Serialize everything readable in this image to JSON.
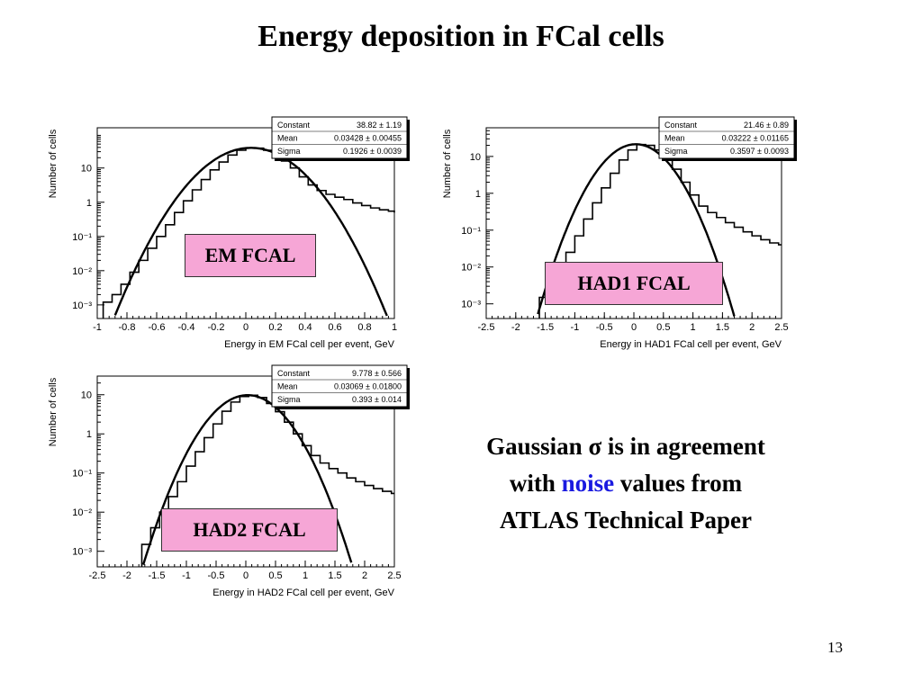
{
  "title": "Energy deposition in FCal cells",
  "note": {
    "line1a": "Gaussian ",
    "sigma": "σ",
    "line1b": " is in agreement",
    "line2a": "with ",
    "highlight": "noise",
    "line2b": " values from",
    "line3": "ATLAS Technical Paper"
  },
  "page_number": "13",
  "colors": {
    "label_bg": "#f6a6d6",
    "highlight": "#1a1ae0"
  },
  "chart_data": [
    {
      "type": "line",
      "label": "EM FCAL",
      "xlabel": "Energy in EM FCal cell per event, GeV",
      "ylabel": "Number of cells",
      "y_scale": "log",
      "xlim": [
        -1,
        1
      ],
      "ylim": [
        0.0004,
        150
      ],
      "xticks": [
        -1,
        -0.8,
        -0.6,
        -0.4,
        -0.2,
        0,
        0.2,
        0.4,
        0.6,
        0.8,
        1
      ],
      "xtick_labels": [
        "-1",
        "-0.8",
        "-0.6",
        "-0.4",
        "-0.2",
        "0",
        "0.2",
        "0.4",
        "0.6",
        "0.8",
        "1"
      ],
      "yticks": [
        0.001,
        0.01,
        0.1,
        1,
        10
      ],
      "ytick_labels": [
        "10⁻³",
        "10⁻²",
        "10⁻¹",
        "1",
        "10"
      ],
      "fit": {
        "constant": 38.82,
        "mean": 0.03428,
        "sigma": 0.1926
      },
      "stats": [
        {
          "name": "Constant",
          "value": "38.82 ± 1.19"
        },
        {
          "name": "Mean",
          "value": "0.03428 ± 0.00455"
        },
        {
          "name": "Sigma",
          "value": "0.1926 ± 0.0039"
        }
      ],
      "histogram": {
        "x": [
          -0.96,
          -0.9,
          -0.84,
          -0.78,
          -0.72,
          -0.66,
          -0.6,
          -0.54,
          -0.48,
          -0.42,
          -0.36,
          -0.3,
          -0.24,
          -0.18,
          -0.12,
          -0.06,
          0,
          0.06,
          0.12,
          0.18,
          0.24,
          0.3,
          0.36,
          0.42,
          0.48,
          0.54,
          0.6,
          0.66,
          0.72,
          0.78,
          0.84,
          0.9,
          0.96,
          1.0
        ],
        "y": [
          0.0012,
          0.002,
          0.004,
          0.009,
          0.02,
          0.045,
          0.1,
          0.22,
          0.5,
          1.1,
          2.3,
          4.6,
          8.8,
          15,
          24,
          33,
          38,
          38,
          33,
          25,
          16,
          10,
          5.5,
          3.2,
          2.2,
          1.7,
          1.4,
          1.2,
          0.95,
          0.8,
          0.68,
          0.6,
          0.55,
          0.5
        ]
      }
    },
    {
      "type": "line",
      "label": "HAD1 FCAL",
      "xlabel": "Energy in HAD1 FCal cell per event, GeV",
      "ylabel": "Number of cells",
      "y_scale": "log",
      "xlim": [
        -2.5,
        2.5
      ],
      "ylim": [
        0.0004,
        60
      ],
      "xticks": [
        -2.5,
        -2,
        -1.5,
        -1,
        -0.5,
        0,
        0.5,
        1,
        1.5,
        2,
        2.5
      ],
      "xtick_labels": [
        "-2.5",
        "-2",
        "-1.5",
        "-1",
        "-0.5",
        "0",
        "0.5",
        "1",
        "1.5",
        "2",
        "2.5"
      ],
      "yticks": [
        0.001,
        0.01,
        0.1,
        1,
        10
      ],
      "ytick_labels": [
        "10⁻³",
        "10⁻²",
        "10⁻¹",
        "1",
        "10"
      ],
      "fit": {
        "constant": 21.46,
        "mean": 0.03222,
        "sigma": 0.3597
      },
      "stats": [
        {
          "name": "Constant",
          "value": "21.46 ± 0.89"
        },
        {
          "name": "Mean",
          "value": "0.03222 ± 0.01165"
        },
        {
          "name": "Sigma",
          "value": "0.3597 ± 0.0093"
        }
      ],
      "histogram": {
        "x": [
          -1.6,
          -1.45,
          -1.3,
          -1.15,
          -1.0,
          -0.85,
          -0.7,
          -0.55,
          -0.4,
          -0.25,
          -0.1,
          0.05,
          0.2,
          0.35,
          0.5,
          0.65,
          0.8,
          0.95,
          1.1,
          1.25,
          1.4,
          1.55,
          1.7,
          1.85,
          2.0,
          2.15,
          2.3,
          2.45
        ],
        "y": [
          0.0015,
          0.003,
          0.008,
          0.025,
          0.07,
          0.2,
          0.55,
          1.4,
          3.5,
          8,
          15,
          21,
          20,
          15,
          8.5,
          4.5,
          2.0,
          0.9,
          0.45,
          0.3,
          0.22,
          0.16,
          0.12,
          0.09,
          0.07,
          0.055,
          0.045,
          0.04
        ]
      }
    },
    {
      "type": "line",
      "label": "HAD2 FCAL",
      "xlabel": "Energy in HAD2 FCal cell per event, GeV",
      "ylabel": "Number of cells",
      "y_scale": "log",
      "xlim": [
        -2.5,
        2.5
      ],
      "ylim": [
        0.0004,
        30
      ],
      "xticks": [
        -2.5,
        -2,
        -1.5,
        -1,
        -0.5,
        0,
        0.5,
        1,
        1.5,
        2,
        2.5
      ],
      "xtick_labels": [
        "-2.5",
        "-2",
        "-1.5",
        "-1",
        "-0.5",
        "0",
        "0.5",
        "1",
        "1.5",
        "2",
        "2.5"
      ],
      "yticks": [
        0.001,
        0.01,
        0.1,
        1,
        10
      ],
      "ytick_labels": [
        "10⁻³",
        "10⁻²",
        "10⁻¹",
        "1",
        "10"
      ],
      "fit": {
        "constant": 9.778,
        "mean": 0.03069,
        "sigma": 0.393
      },
      "stats": [
        {
          "name": "Constant",
          "value": "9.778 ± 0.566"
        },
        {
          "name": "Mean",
          "value": "0.03069 ± 0.01800"
        },
        {
          "name": "Sigma",
          "value": "0.393 ± 0.014"
        }
      ],
      "histogram": {
        "x": [
          -1.75,
          -1.6,
          -1.45,
          -1.3,
          -1.15,
          -1.0,
          -0.85,
          -0.7,
          -0.55,
          -0.4,
          -0.25,
          -0.1,
          0.05,
          0.2,
          0.35,
          0.5,
          0.65,
          0.8,
          0.95,
          1.1,
          1.25,
          1.4,
          1.55,
          1.7,
          1.85,
          2.0,
          2.15,
          2.3,
          2.45
        ],
        "y": [
          0.0015,
          0.004,
          0.01,
          0.025,
          0.06,
          0.15,
          0.35,
          0.8,
          1.8,
          3.8,
          6.5,
          9.0,
          9.7,
          8.5,
          6.0,
          3.7,
          2.0,
          1.0,
          0.5,
          0.28,
          0.18,
          0.13,
          0.1,
          0.075,
          0.06,
          0.048,
          0.04,
          0.034,
          0.03
        ]
      }
    }
  ]
}
